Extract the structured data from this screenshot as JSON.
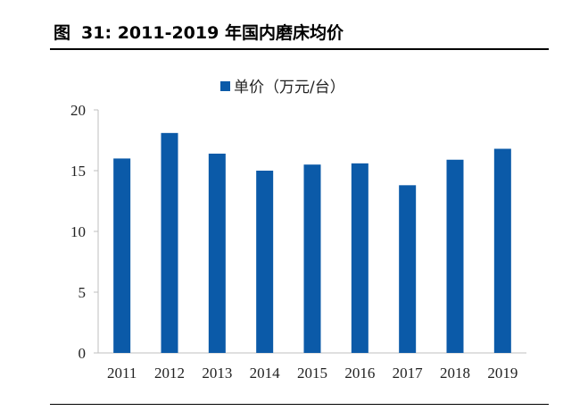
{
  "figure": {
    "label": "图",
    "number": "31:",
    "title": "2011-2019 年国内磨床均价"
  },
  "chart_data": {
    "type": "bar",
    "categories": [
      "2011",
      "2012",
      "2013",
      "2014",
      "2015",
      "2016",
      "2017",
      "2018",
      "2019"
    ],
    "series": [
      {
        "name": "单价（万元/台）",
        "values": [
          16.0,
          18.1,
          16.4,
          15.0,
          15.5,
          15.6,
          13.8,
          15.9,
          16.8
        ],
        "color": "#0b5aa8"
      }
    ],
    "yticks": [
      0,
      5,
      10,
      15,
      20
    ],
    "ylim": [
      0,
      20
    ],
    "xlabel": "",
    "ylabel": "",
    "grid": false,
    "legend_position": "top-center"
  }
}
